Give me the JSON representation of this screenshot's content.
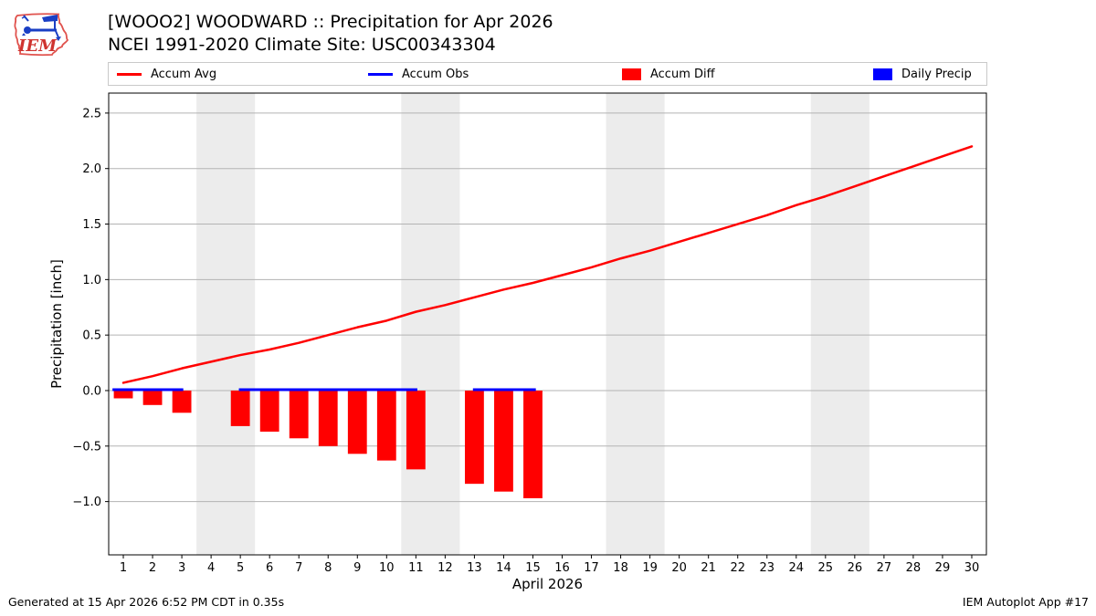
{
  "header": {
    "title_line1": "[WOOO2] WOODWARD :: Precipitation for Apr 2026",
    "title_line2": "NCEI 1991-2020 Climate Site: USC00343304",
    "logo_text": "IEM"
  },
  "legend": [
    {
      "label": "Accum Avg",
      "swatch": "line",
      "color": "#ff0000"
    },
    {
      "label": "Accum Obs",
      "swatch": "line",
      "color": "#0000ff"
    },
    {
      "label": "Accum Diff",
      "swatch": "box",
      "color": "#ff0000"
    },
    {
      "label": "Daily Precip",
      "swatch": "box",
      "color": "#0000ff"
    }
  ],
  "footer": {
    "left": "Generated at 15 Apr 2026 6:52 PM CDT in 0.35s",
    "right": "IEM Autoplot App #17"
  },
  "chart_data": {
    "type": "line",
    "title": "[WOOO2] WOODWARD :: Precipitation for Apr 2026",
    "subtitle": "NCEI 1991-2020 Climate Site: USC00343304",
    "xlabel": "April 2026",
    "ylabel": "Precipitation [inch]",
    "ylim": [
      -1.48,
      2.68
    ],
    "yticks": [
      2.5,
      2.0,
      1.5,
      1.0,
      0.5,
      0.0,
      -0.5,
      -1.0
    ],
    "ytick_labels": [
      "2.5",
      "2.0",
      "1.5",
      "1.0",
      "0.5",
      "0.0",
      "−0.5",
      "−1.0"
    ],
    "xticks": [
      1,
      2,
      3,
      4,
      5,
      6,
      7,
      8,
      9,
      10,
      11,
      12,
      13,
      14,
      15,
      16,
      17,
      18,
      19,
      20,
      21,
      22,
      23,
      24,
      25,
      26,
      27,
      28,
      29,
      30
    ],
    "grid": true,
    "grid_color": "#b3b3b3",
    "weekend_band_color": "#ececec",
    "weekend_bands": [
      [
        3.5,
        5.5
      ],
      [
        10.5,
        12.5
      ],
      [
        17.5,
        19.5
      ],
      [
        24.5,
        26.5
      ]
    ],
    "series": [
      {
        "name": "Accum Avg",
        "type": "line",
        "color": "#ff0000",
        "x": [
          1,
          2,
          3,
          4,
          5,
          6,
          7,
          8,
          9,
          10,
          11,
          12,
          13,
          14,
          15,
          16,
          17,
          18,
          19,
          20,
          21,
          22,
          23,
          24,
          25,
          26,
          27,
          28,
          29,
          30
        ],
        "values": [
          0.07,
          0.13,
          0.2,
          0.26,
          0.32,
          0.37,
          0.43,
          0.5,
          0.57,
          0.63,
          0.71,
          0.77,
          0.84,
          0.91,
          0.97,
          1.04,
          1.11,
          1.19,
          1.26,
          1.34,
          1.42,
          1.5,
          1.58,
          1.67,
          1.75,
          1.84,
          1.93,
          2.02,
          2.11,
          2.2
        ]
      },
      {
        "name": "Accum Obs",
        "type": "line",
        "color": "#0000ff",
        "value": 0.0,
        "segments": [
          [
            0.63,
            3.05
          ],
          [
            4.95,
            11.05
          ],
          [
            12.95,
            15.1
          ]
        ]
      },
      {
        "name": "Accum Diff",
        "type": "bar",
        "color": "#ff0000",
        "days": [
          1,
          2,
          3,
          5,
          6,
          7,
          8,
          9,
          10,
          11,
          13,
          14,
          15
        ],
        "values": [
          -0.07,
          -0.13,
          -0.2,
          -0.32,
          -0.37,
          -0.43,
          -0.5,
          -0.57,
          -0.63,
          -0.71,
          -0.84,
          -0.91,
          -0.97
        ]
      },
      {
        "name": "Daily Precip",
        "type": "bar",
        "color": "#0000ff",
        "days": [],
        "values": []
      }
    ]
  }
}
